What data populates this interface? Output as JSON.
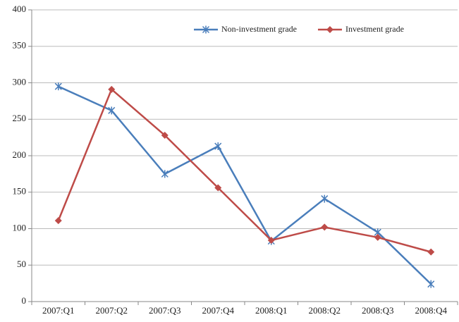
{
  "chart_data": {
    "type": "line",
    "categories": [
      "2007:Q1",
      "2007:Q2",
      "2007:Q3",
      "2007:Q4",
      "2008:Q1",
      "2008:Q2",
      "2008:Q3",
      "2008:Q4"
    ],
    "series": [
      {
        "name": "Non-investment grade",
        "color": "#4a7ebb",
        "marker": "asterisk",
        "values": [
          295,
          262,
          175,
          213,
          83,
          141,
          95,
          24
        ]
      },
      {
        "name": "Investment grade",
        "color": "#be4b48",
        "marker": "diamond",
        "values": [
          111,
          291,
          228,
          156,
          84,
          102,
          88,
          68
        ]
      }
    ],
    "ylim": [
      0,
      400
    ],
    "yticks": [
      0,
      50,
      100,
      150,
      200,
      250,
      300,
      350,
      400
    ],
    "grid": true,
    "legend": "top-right"
  }
}
